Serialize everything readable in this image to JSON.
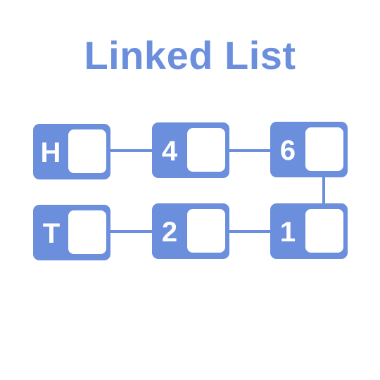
{
  "title": "Linked List",
  "colors": {
    "accent": "#6b8fdd",
    "pointer_box": "#ffffff",
    "background": "#ffffff"
  },
  "nodes": [
    {
      "label": "H"
    },
    {
      "label": "4"
    },
    {
      "label": "6"
    },
    {
      "label": "1"
    },
    {
      "label": "2"
    },
    {
      "label": "T"
    }
  ]
}
